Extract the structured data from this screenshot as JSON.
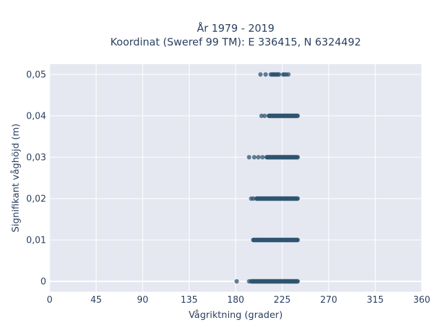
{
  "chart_data": {
    "type": "scatter",
    "title_line1": "År 1979 - 2019",
    "title_line2": "Koordinat (Sweref 99 TM): E 336415, N 6324492",
    "xlabel": "Vågriktning (grader)",
    "ylabel": "Signifikant våghöjd (m)",
    "xlim": [
      0,
      360
    ],
    "ylim": [
      -0.0025,
      0.0525
    ],
    "x_ticks": [
      0,
      45,
      90,
      135,
      180,
      225,
      270,
      315,
      360
    ],
    "x_tick_labels": [
      "0",
      "45",
      "90",
      "135",
      "180",
      "225",
      "270",
      "315",
      "360"
    ],
    "y_ticks": [
      0,
      0.01,
      0.02,
      0.03,
      0.04,
      0.05
    ],
    "y_tick_labels": [
      "0",
      "0,01",
      "0,02",
      "0,03",
      "0,04",
      "0,05"
    ],
    "grid": true,
    "plot_background": "#e5e8f1",
    "marker_color": "#2f5470",
    "series": [
      {
        "points": [
          {
            "y": 0,
            "x_min": 195,
            "x_max": 240,
            "outliers": [
              181,
              193
            ]
          },
          {
            "y": 0.01,
            "x_min": 197,
            "x_max": 240,
            "outliers": []
          },
          {
            "y": 0.02,
            "x_min": 200,
            "x_max": 240,
            "outliers": [
              195,
              197
            ]
          },
          {
            "y": 0.03,
            "x_min": 210,
            "x_max": 240,
            "outliers": [
              193,
              198,
              202,
              206
            ]
          },
          {
            "y": 0.04,
            "x_min": 212,
            "x_max": 240,
            "outliers": [
              205,
              208
            ]
          },
          {
            "y": 0.05,
            "x_min": 214,
            "x_max": 231,
            "outliers": [
              204,
              209
            ]
          }
        ]
      }
    ]
  }
}
